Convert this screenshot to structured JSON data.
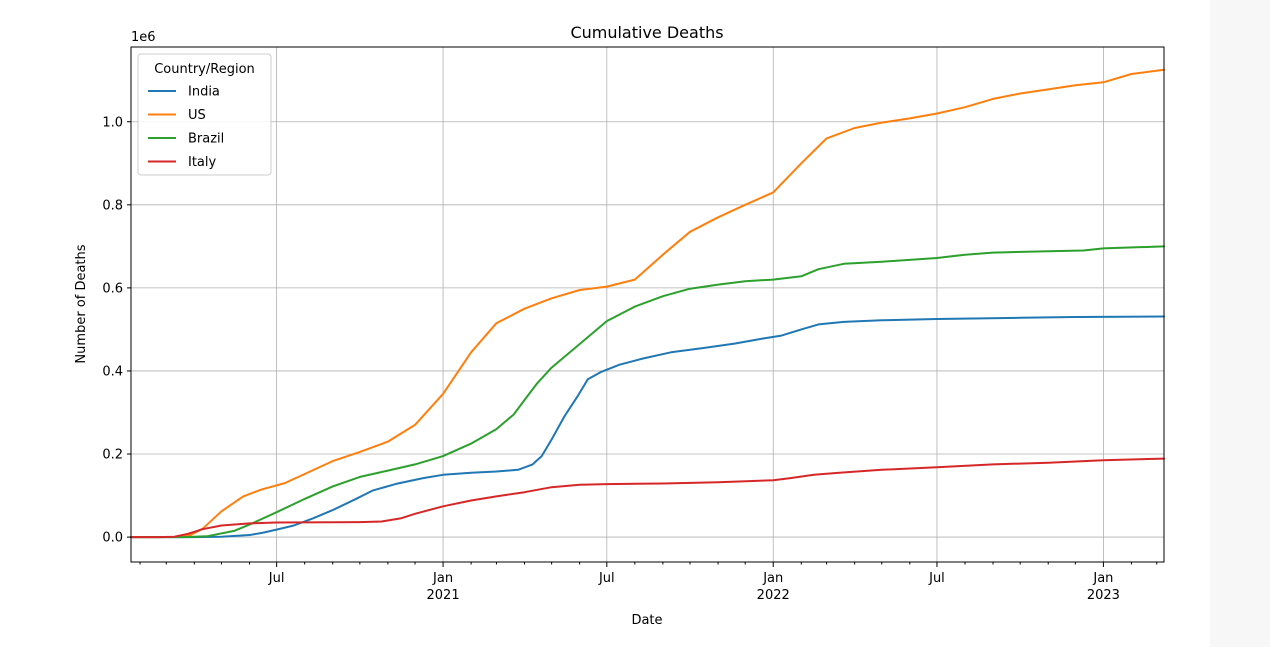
{
  "chart_data": {
    "type": "line",
    "title": "Cumulative Deaths",
    "xlabel": "Date",
    "ylabel": "Number of Deaths",
    "y_offset_text": "1e6",
    "xlim": [
      "2020-01-22",
      "2023-03-09"
    ],
    "ylim": [
      -60000,
      1180000
    ],
    "grid": true,
    "legend": {
      "title": "Country/Region",
      "placement": "top-left"
    },
    "y_ticks": [
      {
        "value": 0,
        "label": "0.0"
      },
      {
        "value": 200000,
        "label": "0.2"
      },
      {
        "value": 400000,
        "label": "0.4"
      },
      {
        "value": 600000,
        "label": "0.6"
      },
      {
        "value": 800000,
        "label": "0.8"
      },
      {
        "value": 1000000,
        "label": "1.0"
      }
    ],
    "x_major_ticks": [
      {
        "date": "2020-07-01",
        "label": "Jul",
        "sublabel": ""
      },
      {
        "date": "2021-01-01",
        "label": "Jan",
        "sublabel": "2021"
      },
      {
        "date": "2021-07-01",
        "label": "Jul",
        "sublabel": ""
      },
      {
        "date": "2022-01-01",
        "label": "Jan",
        "sublabel": "2022"
      },
      {
        "date": "2022-07-01",
        "label": "Jul",
        "sublabel": ""
      },
      {
        "date": "2023-01-01",
        "label": "Jan",
        "sublabel": "2023"
      }
    ],
    "x_minor_ticks": [
      "2020-02-01",
      "2020-03-01",
      "2020-04-01",
      "2020-05-01",
      "2020-06-01",
      "2020-08-01",
      "2020-09-01",
      "2020-10-01",
      "2020-11-01",
      "2020-12-01",
      "2021-02-01",
      "2021-03-01",
      "2021-04-01",
      "2021-05-01",
      "2021-06-01",
      "2021-08-01",
      "2021-09-01",
      "2021-10-01",
      "2021-11-01",
      "2021-12-01",
      "2022-02-01",
      "2022-03-01",
      "2022-04-01",
      "2022-05-01",
      "2022-06-01",
      "2022-08-01",
      "2022-09-01",
      "2022-10-01",
      "2022-11-01",
      "2022-12-01",
      "2023-02-01",
      "2023-03-01"
    ],
    "series": [
      {
        "name": "India",
        "color": "#1f77b4",
        "points": [
          [
            "2020-01-22",
            0
          ],
          [
            "2020-04-01",
            0
          ],
          [
            "2020-05-01",
            1000
          ],
          [
            "2020-06-01",
            5000
          ],
          [
            "2020-06-15",
            10000
          ],
          [
            "2020-07-01",
            18000
          ],
          [
            "2020-07-20",
            28000
          ],
          [
            "2020-08-10",
            45000
          ],
          [
            "2020-09-01",
            65000
          ],
          [
            "2020-09-25",
            90000
          ],
          [
            "2020-10-15",
            112000
          ],
          [
            "2020-11-10",
            128000
          ],
          [
            "2020-12-10",
            142000
          ],
          [
            "2021-01-01",
            150000
          ],
          [
            "2021-02-01",
            155000
          ],
          [
            "2021-03-01",
            158000
          ],
          [
            "2021-03-25",
            162000
          ],
          [
            "2021-04-10",
            175000
          ],
          [
            "2021-04-20",
            195000
          ],
          [
            "2021-05-01",
            235000
          ],
          [
            "2021-05-15",
            290000
          ],
          [
            "2021-05-30",
            340000
          ],
          [
            "2021-06-10",
            380000
          ],
          [
            "2021-06-25",
            398000
          ],
          [
            "2021-07-15",
            415000
          ],
          [
            "2021-08-10",
            430000
          ],
          [
            "2021-09-10",
            445000
          ],
          [
            "2021-10-15",
            455000
          ],
          [
            "2021-11-20",
            466000
          ],
          [
            "2021-12-20",
            478000
          ],
          [
            "2022-01-10",
            485000
          ],
          [
            "2022-02-01",
            500000
          ],
          [
            "2022-02-20",
            512000
          ],
          [
            "2022-03-20",
            518000
          ],
          [
            "2022-05-01",
            522000
          ],
          [
            "2022-07-01",
            525000
          ],
          [
            "2022-10-01",
            528000
          ],
          [
            "2022-12-01",
            530000
          ],
          [
            "2023-03-09",
            531000
          ]
        ]
      },
      {
        "name": "US",
        "color": "#ff7f0e",
        "points": [
          [
            "2020-01-22",
            0
          ],
          [
            "2020-03-15",
            100
          ],
          [
            "2020-03-28",
            5000
          ],
          [
            "2020-04-10",
            20000
          ],
          [
            "2020-05-01",
            62000
          ],
          [
            "2020-05-25",
            98000
          ],
          [
            "2020-06-15",
            115000
          ],
          [
            "2020-07-10",
            130000
          ],
          [
            "2020-08-01",
            152000
          ],
          [
            "2020-09-01",
            183000
          ],
          [
            "2020-10-01",
            205000
          ],
          [
            "2020-11-01",
            230000
          ],
          [
            "2020-12-01",
            270000
          ],
          [
            "2021-01-01",
            345000
          ],
          [
            "2021-02-01",
            445000
          ],
          [
            "2021-03-01",
            515000
          ],
          [
            "2021-04-01",
            550000
          ],
          [
            "2021-05-01",
            575000
          ],
          [
            "2021-06-01",
            595000
          ],
          [
            "2021-07-01",
            603000
          ],
          [
            "2021-08-01",
            620000
          ],
          [
            "2021-09-01",
            680000
          ],
          [
            "2021-10-01",
            735000
          ],
          [
            "2021-11-01",
            770000
          ],
          [
            "2021-12-01",
            800000
          ],
          [
            "2022-01-01",
            830000
          ],
          [
            "2022-02-01",
            900000
          ],
          [
            "2022-03-01",
            960000
          ],
          [
            "2022-04-01",
            985000
          ],
          [
            "2022-05-01",
            998000
          ],
          [
            "2022-06-01",
            1008000
          ],
          [
            "2022-07-01",
            1020000
          ],
          [
            "2022-08-01",
            1035000
          ],
          [
            "2022-09-01",
            1055000
          ],
          [
            "2022-10-01",
            1068000
          ],
          [
            "2022-11-01",
            1078000
          ],
          [
            "2022-12-01",
            1088000
          ],
          [
            "2023-01-01",
            1095000
          ],
          [
            "2023-02-01",
            1115000
          ],
          [
            "2023-03-09",
            1125000
          ]
        ]
      },
      {
        "name": "Brazil",
        "color": "#2ca02c",
        "points": [
          [
            "2020-01-22",
            0
          ],
          [
            "2020-03-20",
            0
          ],
          [
            "2020-04-15",
            2000
          ],
          [
            "2020-05-15",
            15000
          ],
          [
            "2020-06-01",
            30000
          ],
          [
            "2020-07-01",
            60000
          ],
          [
            "2020-08-01",
            92000
          ],
          [
            "2020-09-01",
            122000
          ],
          [
            "2020-10-01",
            145000
          ],
          [
            "2020-11-01",
            160000
          ],
          [
            "2020-12-01",
            175000
          ],
          [
            "2021-01-01",
            195000
          ],
          [
            "2021-02-01",
            225000
          ],
          [
            "2021-03-01",
            260000
          ],
          [
            "2021-03-20",
            295000
          ],
          [
            "2021-04-01",
            330000
          ],
          [
            "2021-04-15",
            370000
          ],
          [
            "2021-05-01",
            408000
          ],
          [
            "2021-06-01",
            465000
          ],
          [
            "2021-07-01",
            520000
          ],
          [
            "2021-08-01",
            555000
          ],
          [
            "2021-09-01",
            580000
          ],
          [
            "2021-10-01",
            598000
          ],
          [
            "2021-11-01",
            608000
          ],
          [
            "2021-12-01",
            616000
          ],
          [
            "2022-01-01",
            620000
          ],
          [
            "2022-02-01",
            628000
          ],
          [
            "2022-02-20",
            645000
          ],
          [
            "2022-03-20",
            658000
          ],
          [
            "2022-05-01",
            663000
          ],
          [
            "2022-07-01",
            672000
          ],
          [
            "2022-08-01",
            680000
          ],
          [
            "2022-09-01",
            685000
          ],
          [
            "2022-11-01",
            688000
          ],
          [
            "2022-12-10",
            690000
          ],
          [
            "2023-01-01",
            695000
          ],
          [
            "2023-03-09",
            700000
          ]
        ]
      },
      {
        "name": "Italy",
        "color": "#d62728",
        "points": [
          [
            "2020-01-22",
            0
          ],
          [
            "2020-02-22",
            0
          ],
          [
            "2020-03-10",
            800
          ],
          [
            "2020-03-25",
            8000
          ],
          [
            "2020-04-10",
            19000
          ],
          [
            "2020-05-01",
            28000
          ],
          [
            "2020-06-01",
            33000
          ],
          [
            "2020-07-01",
            35000
          ],
          [
            "2020-09-01",
            35500
          ],
          [
            "2020-10-01",
            36000
          ],
          [
            "2020-10-25",
            37500
          ],
          [
            "2020-11-15",
            45000
          ],
          [
            "2020-12-01",
            56000
          ],
          [
            "2021-01-01",
            74000
          ],
          [
            "2021-02-01",
            88000
          ],
          [
            "2021-03-01",
            98000
          ],
          [
            "2021-04-01",
            108000
          ],
          [
            "2021-05-01",
            120000
          ],
          [
            "2021-06-01",
            126000
          ],
          [
            "2021-07-01",
            127500
          ],
          [
            "2021-09-01",
            129000
          ],
          [
            "2021-11-01",
            132000
          ],
          [
            "2022-01-01",
            137000
          ],
          [
            "2022-01-20",
            142000
          ],
          [
            "2022-02-15",
            150000
          ],
          [
            "2022-03-15",
            155000
          ],
          [
            "2022-05-01",
            162000
          ],
          [
            "2022-07-01",
            168000
          ],
          [
            "2022-09-01",
            175000
          ],
          [
            "2022-11-01",
            179000
          ],
          [
            "2023-01-01",
            185000
          ],
          [
            "2023-03-09",
            189000
          ]
        ]
      }
    ]
  }
}
